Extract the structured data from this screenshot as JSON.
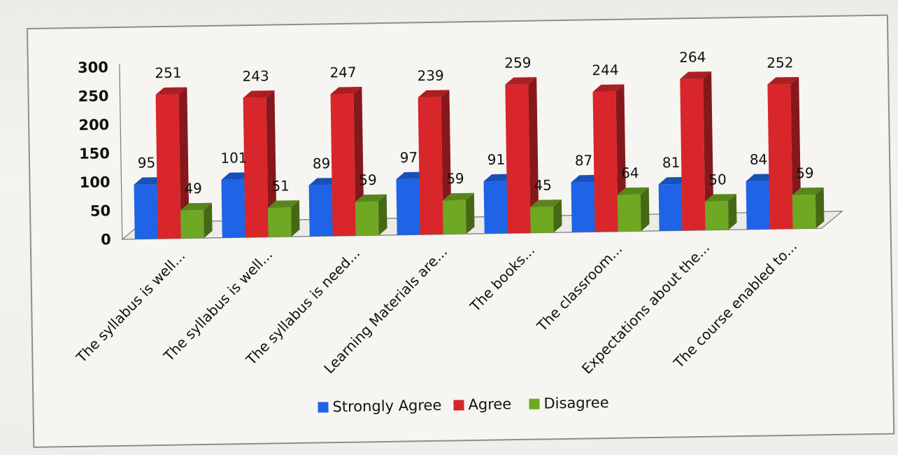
{
  "chart_data": {
    "type": "bar",
    "title": "",
    "xlabel": "",
    "ylabel": "",
    "ylim": [
      0,
      300
    ],
    "yticks": [
      "0",
      "50",
      "100",
      "150",
      "200",
      "250",
      "300"
    ],
    "categories": [
      "The syllabus is well...",
      "The syllabus is well...",
      "The syllabus is need...",
      "Learning Materials are...",
      "The books...",
      "The classroom...",
      "Expectations about the...",
      "The course enabled to..."
    ],
    "series": [
      {
        "name": "Strongly Agree",
        "color": "#1f64e6",
        "values": [
          95,
          101,
          89,
          97,
          91,
          87,
          81,
          84
        ],
        "labels": [
          "95",
          "101",
          "89",
          "97",
          "91",
          "87",
          "81",
          "84"
        ]
      },
      {
        "name": "Agree",
        "color": "#d8262b",
        "values": [
          251,
          243,
          247,
          239,
          259,
          244,
          264,
          252
        ],
        "labels": [
          "251",
          "243",
          "247",
          "239",
          "259",
          "244",
          "264",
          "252"
        ]
      },
      {
        "name": "Disagree",
        "color": "#6fa823",
        "values": [
          49,
          51,
          59,
          59,
          45,
          64,
          50,
          59
        ],
        "labels": [
          "49",
          "51",
          "59",
          "59",
          "45",
          "64",
          "50",
          "59"
        ]
      }
    ],
    "legend_position": "bottom",
    "grid": false,
    "style": "3d"
  }
}
